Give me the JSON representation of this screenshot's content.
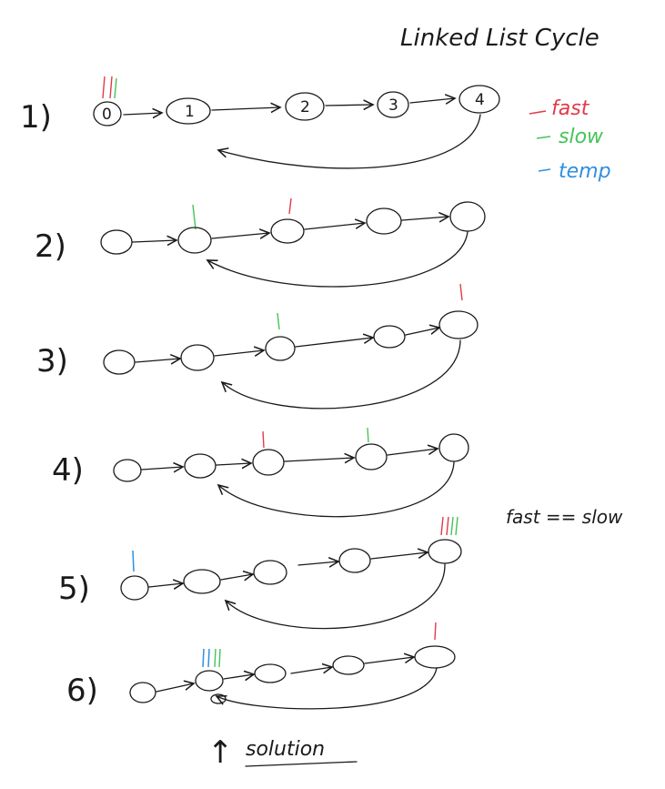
{
  "title": "Linked List Cycle",
  "legend": {
    "fast": {
      "label": "fast",
      "color": "#e23a4a"
    },
    "slow": {
      "label": "slow",
      "color": "#46c35a"
    },
    "temp": {
      "label": "temp",
      "color": "#2f8fe0"
    }
  },
  "row_labels": [
    "1)",
    "2)",
    "3)",
    "4)",
    "5)",
    "6)"
  ],
  "node_labels": [
    "0",
    "1",
    "2",
    "3",
    "4"
  ],
  "note": "fast == slow",
  "solution": {
    "arrow": "↑",
    "label": "solution"
  }
}
